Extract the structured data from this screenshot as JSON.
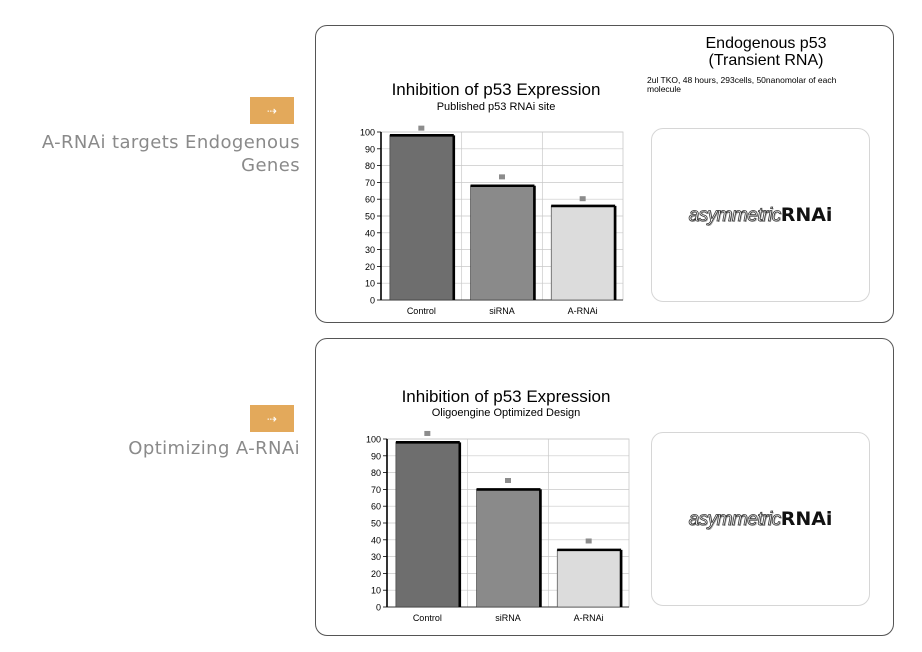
{
  "slide": {
    "section1": {
      "arrow": "⇢",
      "label_line1": "A-RNAi targets Endogenous",
      "label_line2": "Genes"
    },
    "section2": {
      "arrow": "⇢",
      "label": "Optimizing A-RNAi"
    }
  },
  "panel1": {
    "endo_title_line1": "Endogenous p53",
    "endo_title_line2": "(Transient RNA)",
    "endo_note_line1": "2ul TKO, 48 hours, 293cells, 50nanomolar of each",
    "endo_note_line2": "molecule",
    "logo_prefix": "asymmetric",
    "logo_suffix": "RNAi"
  },
  "panel2": {
    "logo_prefix": "asymmetric",
    "logo_suffix": "RNAi"
  },
  "colors": {
    "accent": "#e3a95b",
    "bar_control": "#6e6e6e",
    "bar_sirna": "#8a8a8a",
    "bar_arnai": "#dcdcdc",
    "marker": "#8c8c8c"
  },
  "chart_data": [
    {
      "type": "bar",
      "title": "Inhibition of p53 Expression",
      "subtitle": "Published p53 RNAi site",
      "categories": [
        "Control",
        "siRNA",
        "A-RNAi"
      ],
      "values": [
        98,
        68,
        56
      ],
      "markers": [
        102,
        73,
        60
      ],
      "ylim": [
        0,
        100
      ],
      "yticks": [
        "0",
        "10",
        "20",
        "30",
        "40",
        "50",
        "60",
        "70",
        "80",
        "90",
        "100"
      ],
      "grid": true,
      "legend": "none"
    },
    {
      "type": "bar",
      "title": "Inhibition of p53 Expression",
      "subtitle": "Oligoengine Optimized Design",
      "categories": [
        "Control",
        "siRNA",
        "A-RNAi"
      ],
      "values": [
        98,
        70,
        34
      ],
      "markers": [
        103,
        75,
        39
      ],
      "ylim": [
        0,
        100
      ],
      "yticks": [
        "0",
        "10",
        "20",
        "30",
        "40",
        "50",
        "60",
        "70",
        "80",
        "90",
        "100"
      ],
      "grid": true,
      "legend": "none"
    }
  ]
}
